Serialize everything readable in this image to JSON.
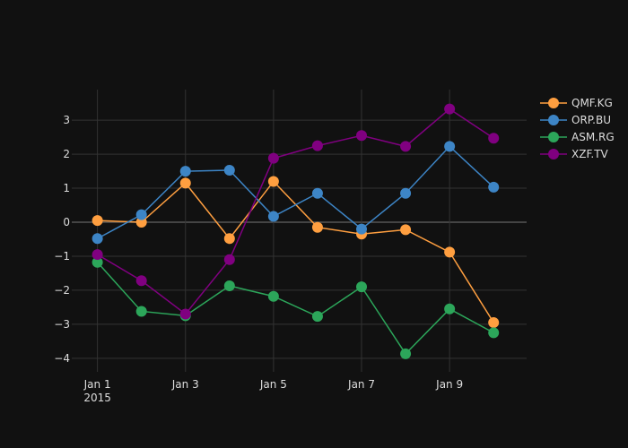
{
  "chart_data": {
    "type": "line",
    "x": [
      "2015-01-01",
      "2015-01-02",
      "2015-01-03",
      "2015-01-04",
      "2015-01-05",
      "2015-01-06",
      "2015-01-07",
      "2015-01-08",
      "2015-01-09",
      "2015-01-10"
    ],
    "x_tick_labels": [
      {
        "date": "2015-01-01",
        "line1": "Jan 1",
        "line2": "2015"
      },
      {
        "date": "2015-01-03",
        "line1": "Jan 3",
        "line2": ""
      },
      {
        "date": "2015-01-05",
        "line1": "Jan 5",
        "line2": ""
      },
      {
        "date": "2015-01-07",
        "line1": "Jan 7",
        "line2": ""
      },
      {
        "date": "2015-01-09",
        "line1": "Jan 9",
        "line2": ""
      }
    ],
    "y_ticks": [
      3,
      2,
      1,
      0,
      -1,
      -2,
      -3,
      -4
    ],
    "y_tick_labels": [
      "3",
      "2",
      "1",
      "0",
      "−1",
      "−2",
      "−3",
      "−4"
    ],
    "xlim": [
      "2014-12-31T10:00",
      "2015-01-10T18:00"
    ],
    "ylim": [
      -4.4,
      3.9
    ],
    "grid": true,
    "legend_position": "top-right",
    "series": [
      {
        "name": "QMF.KG",
        "color": "#ff9f40",
        "values": [
          0.05,
          0.0,
          1.15,
          -0.48,
          1.2,
          -0.15,
          -0.35,
          -0.22,
          -0.88,
          -2.95
        ]
      },
      {
        "name": "ORP.BU",
        "color": "#3d85c6",
        "values": [
          -0.48,
          0.22,
          1.5,
          1.53,
          0.17,
          0.85,
          -0.2,
          0.85,
          2.23,
          1.03
        ]
      },
      {
        "name": "ASM.RG",
        "color": "#2ca65a",
        "values": [
          -1.18,
          -2.62,
          -2.75,
          -1.87,
          -2.18,
          -2.77,
          -1.9,
          -3.87,
          -2.55,
          -3.25
        ]
      },
      {
        "name": "XZF.TV",
        "color": "#800080",
        "values": [
          -0.95,
          -1.72,
          -2.7,
          -1.1,
          1.88,
          2.25,
          2.55,
          2.23,
          3.33,
          2.47
        ]
      }
    ]
  },
  "colors": {
    "background": "#111111",
    "grid": "#333333",
    "zeroline": "#444444",
    "text": "#dddddd"
  }
}
